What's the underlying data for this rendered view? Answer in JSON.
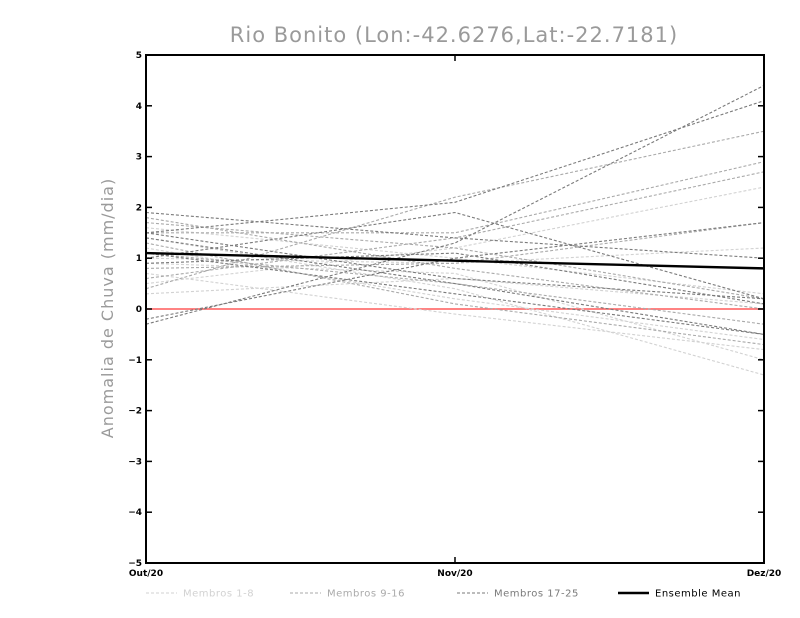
{
  "chart_data": {
    "type": "line",
    "title": "Rio Bonito (Lon:-42.6276,Lat:-22.7181)",
    "xlabel": "",
    "ylabel": "Anomalia de Chuva (mm/dia)",
    "categories": [
      "Out/20",
      "Nov/20",
      "Dez/20"
    ],
    "ylim": [
      -5,
      5
    ],
    "yticks": [
      -5,
      -4,
      -3,
      -2,
      -1,
      0,
      1,
      2,
      3,
      4,
      5
    ],
    "grid": false,
    "legend_position": "bottom",
    "reference_line": {
      "y": 0,
      "color": "#ff5a5a"
    },
    "groups": [
      {
        "name": "Membros 1-8",
        "color": "#d2d2d2"
      },
      {
        "name": "Membros 9-16",
        "color": "#aaaaaa"
      },
      {
        "name": "Membros 17-25",
        "color": "#7a7a7a"
      }
    ],
    "members": [
      {
        "group": 0,
        "values": [
          1.4,
          0.4,
          -1.3
        ]
      },
      {
        "group": 0,
        "values": [
          0.5,
          1.2,
          2.4
        ]
      },
      {
        "group": 0,
        "values": [
          1.0,
          0.9,
          1.2
        ]
      },
      {
        "group": 0,
        "values": [
          0.7,
          -0.1,
          -0.8
        ]
      },
      {
        "group": 0,
        "values": [
          1.6,
          1.0,
          0.3
        ]
      },
      {
        "group": 0,
        "values": [
          0.3,
          0.6,
          0.1
        ]
      },
      {
        "group": 0,
        "values": [
          1.2,
          0.2,
          -0.6
        ]
      },
      {
        "group": 0,
        "values": [
          0.9,
          0.7,
          -1.0
        ]
      },
      {
        "group": 1,
        "values": [
          1.8,
          0.8,
          0.0
        ]
      },
      {
        "group": 1,
        "values": [
          0.4,
          2.2,
          3.5
        ]
      },
      {
        "group": 1,
        "values": [
          1.5,
          1.5,
          2.9
        ]
      },
      {
        "group": 1,
        "values": [
          1.1,
          0.5,
          -0.3
        ]
      },
      {
        "group": 1,
        "values": [
          1.7,
          1.2,
          0.2
        ]
      },
      {
        "group": 1,
        "values": [
          0.6,
          1.4,
          2.7
        ]
      },
      {
        "group": 1,
        "values": [
          1.3,
          0.1,
          -0.7
        ]
      },
      {
        "group": 1,
        "values": [
          0.8,
          0.9,
          1.7
        ]
      },
      {
        "group": 2,
        "values": [
          -0.3,
          1.3,
          4.4
        ]
      },
      {
        "group": 2,
        "values": [
          1.5,
          2.1,
          4.1
        ]
      },
      {
        "group": 2,
        "values": [
          1.9,
          1.4,
          1.0
        ]
      },
      {
        "group": 2,
        "values": [
          1.0,
          1.9,
          0.2
        ]
      },
      {
        "group": 2,
        "values": [
          1.4,
          0.5,
          -0.5
        ]
      },
      {
        "group": 2,
        "values": [
          -0.2,
          1.0,
          1.7
        ]
      },
      {
        "group": 2,
        "values": [
          1.1,
          0.3,
          -0.5
        ]
      },
      {
        "group": 2,
        "values": [
          0.9,
          1.1,
          0.1
        ]
      },
      {
        "group": 2,
        "values": [
          1.5,
          0.6,
          0.2
        ]
      }
    ],
    "series": [
      {
        "name": "Ensemble Mean",
        "values": [
          1.1,
          0.95,
          0.8
        ],
        "color": "#000000"
      }
    ],
    "legend": [
      {
        "label": "Membros 1-8",
        "style": "dashed",
        "color": "#d2d2d2"
      },
      {
        "label": "Membros 9-16",
        "style": "dashed",
        "color": "#aaaaaa"
      },
      {
        "label": "Membros 17-25",
        "style": "dashed",
        "color": "#7a7a7a"
      },
      {
        "label": "Ensemble Mean",
        "style": "solid",
        "color": "#000000"
      }
    ]
  }
}
